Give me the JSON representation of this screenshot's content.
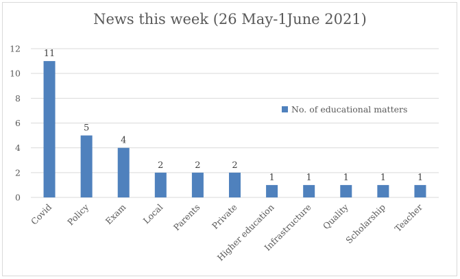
{
  "chart_data": {
    "type": "bar",
    "title": "News this week (26 May-1June 2021)",
    "categories": [
      "Covid",
      "Policy",
      "Exam",
      "Local",
      "Parents",
      "Private",
      "Higher education",
      "Infrastructure",
      "Quality",
      "Scholarship",
      "Teacher"
    ],
    "series": [
      {
        "name": "No. of educational matters",
        "values": [
          11,
          5,
          4,
          2,
          2,
          2,
          1,
          1,
          1,
          1,
          1
        ]
      }
    ],
    "ylim": [
      0,
      12
    ],
    "yticks": [
      0,
      2,
      4,
      6,
      8,
      10,
      12
    ],
    "xlabel": "",
    "ylabel": "",
    "grid": true,
    "legend": "right",
    "colors": {
      "bar": "#4f81bd",
      "grid": "#d9d9d9",
      "text": "#595959"
    }
  }
}
